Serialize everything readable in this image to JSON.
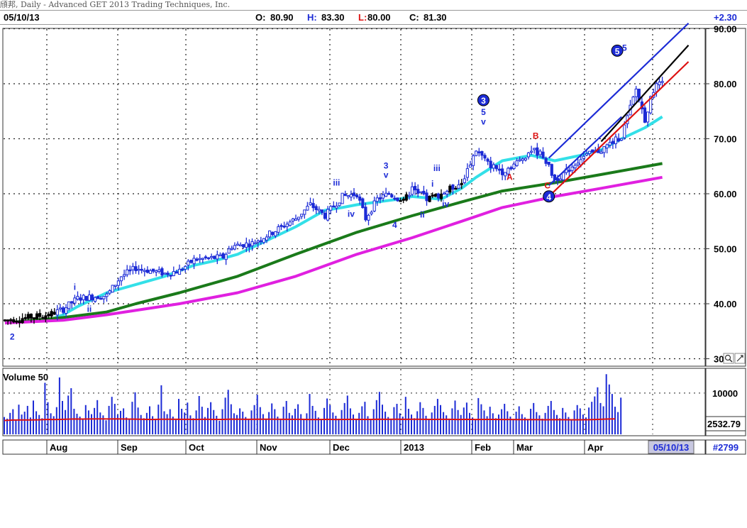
{
  "window": {
    "title": "頎邦, Daily - Advanced GET 2013 Trading Techniques, Inc."
  },
  "header": {
    "date": "05/10/13",
    "open_label": "O:",
    "open": "80.90",
    "high_label": "H:",
    "high": "83.30",
    "low_label": "L:",
    "low": "80.00",
    "close_label": "C:",
    "close": "81.30",
    "change": "+2.30"
  },
  "status": {
    "date_box": "05/10/13",
    "bar_count": "#2799"
  },
  "colors": {
    "up_bar": "#1c2bd6",
    "down_bar": "#000000",
    "cyan_ma": "#33e0e8",
    "green_ma": "#1a7a1a",
    "magenta_ma": "#e020e0",
    "volume": "#1c2bd6",
    "volume_ma": "#dd1111",
    "wave_label": "#1c2bd6",
    "abc_label": "#dd1111",
    "channel_blue": "#1c2bd6",
    "channel_black": "#000000",
    "channel_red": "#dd1111"
  },
  "chart_data": {
    "type": "candlestick",
    "y_axis": {
      "min": 30,
      "max": 90,
      "ticks": [
        "30",
        "40.00",
        "50.00",
        "60.00",
        "70.00",
        "80.00",
        "90.00"
      ],
      "grid": true
    },
    "x_axis": {
      "months": [
        "Aug",
        "Sep",
        "Oct",
        "Nov",
        "Dec",
        "2013",
        "Feb",
        "Mar",
        "Apr"
      ]
    },
    "price_path": [
      [
        0,
        37
      ],
      [
        8,
        37.5
      ],
      [
        15,
        38
      ],
      [
        20,
        39
      ],
      [
        25,
        41
      ],
      [
        35,
        41.5
      ],
      [
        40,
        45
      ],
      [
        45,
        46.5
      ],
      [
        55,
        45.5
      ],
      [
        60,
        46
      ],
      [
        65,
        48
      ],
      [
        75,
        48.5
      ],
      [
        78,
        50.5
      ],
      [
        85,
        51
      ],
      [
        92,
        53
      ],
      [
        100,
        55.5
      ],
      [
        105,
        58
      ],
      [
        110,
        56
      ],
      [
        116,
        59.5
      ],
      [
        121,
        60
      ],
      [
        124,
        55.5
      ],
      [
        128,
        59
      ],
      [
        132,
        60
      ],
      [
        137,
        58.5
      ],
      [
        140,
        61
      ],
      [
        145,
        59
      ],
      [
        150,
        60
      ],
      [
        157,
        62
      ],
      [
        162,
        68
      ],
      [
        166,
        65.5
      ],
      [
        171,
        64
      ],
      [
        177,
        66
      ],
      [
        181,
        68
      ],
      [
        185,
        67
      ],
      [
        189,
        62.5
      ],
      [
        193,
        64
      ],
      [
        198,
        66.5
      ],
      [
        205,
        68
      ],
      [
        212,
        70.5
      ],
      [
        217,
        79
      ],
      [
        220,
        73.5
      ],
      [
        223,
        79
      ],
      [
        226,
        81
      ]
    ],
    "moving_averages": {
      "cyan": [
        [
          0,
          36.5
        ],
        [
          8,
          36.8
        ],
        [
          15,
          37
        ],
        [
          20,
          38
        ],
        [
          25,
          39.5
        ],
        [
          35,
          42
        ],
        [
          45,
          43.5
        ],
        [
          55,
          45
        ],
        [
          65,
          47
        ],
        [
          72,
          47.8
        ],
        [
          80,
          49
        ],
        [
          90,
          51.5
        ],
        [
          100,
          54
        ],
        [
          110,
          57
        ],
        [
          116,
          57.5
        ],
        [
          121,
          58
        ],
        [
          128,
          58.5
        ],
        [
          135,
          59
        ],
        [
          140,
          59.5
        ],
        [
          150,
          59
        ],
        [
          157,
          61
        ],
        [
          162,
          63
        ],
        [
          171,
          66
        ],
        [
          181,
          67
        ],
        [
          189,
          66
        ],
        [
          198,
          67
        ],
        [
          205,
          68
        ],
        [
          212,
          70
        ],
        [
          220,
          72
        ],
        [
          226,
          74
        ]
      ],
      "green": [
        [
          0,
          36.5
        ],
        [
          20,
          37.5
        ],
        [
          35,
          38.5
        ],
        [
          45,
          40
        ],
        [
          60,
          42
        ],
        [
          80,
          45
        ],
        [
          100,
          49
        ],
        [
          121,
          53
        ],
        [
          140,
          56
        ],
        [
          157,
          58.5
        ],
        [
          171,
          60.5
        ],
        [
          189,
          62
        ],
        [
          205,
          63.5
        ],
        [
          226,
          65.5
        ]
      ],
      "magenta": [
        [
          0,
          36.5
        ],
        [
          20,
          37
        ],
        [
          35,
          38
        ],
        [
          60,
          40
        ],
        [
          80,
          42
        ],
        [
          100,
          45
        ],
        [
          121,
          49
        ],
        [
          140,
          52
        ],
        [
          157,
          55
        ],
        [
          171,
          57.5
        ],
        [
          189,
          59.5
        ],
        [
          205,
          61
        ],
        [
          226,
          63
        ]
      ]
    },
    "volume": {
      "axis_ticks": [
        "10000",
        "2532.79"
      ],
      "values": [
        4200,
        3800,
        5200,
        6100,
        3500,
        7200,
        4800,
        5500,
        6900,
        4100,
        8200,
        5600,
        4700,
        3900,
        12500,
        7800,
        5100,
        4400,
        6600,
        13800,
        8100,
        5900,
        9400,
        11200,
        6200,
        5000,
        4300,
        3700,
        7100,
        5800,
        4900,
        6400,
        8300,
        5300,
        4600,
        3400,
        6900,
        9100,
        7400,
        4800,
        5700,
        6300,
        4100,
        3600,
        7900,
        10200,
        6500,
        4700,
        3900,
        5200,
        6800,
        4400,
        3800,
        7200,
        11900,
        5600,
        4900,
        6100,
        4300,
        3500,
        8600,
        6200,
        5300,
        7700,
        4600,
        3900,
        5800,
        9300,
        6700,
        4200,
        6400,
        7800,
        5900,
        4500,
        3300,
        6100,
        8900,
        10800,
        7300,
        5100,
        4700,
        6300,
        5500,
        4200,
        3700,
        5800,
        7100,
        9600,
        6600,
        4900,
        3800,
        5400,
        7500,
        6100,
        4300,
        3600,
        6700,
        8100,
        5200,
        4600,
        6200,
        7300,
        4900,
        3800,
        5100,
        9800,
        6900,
        5700,
        4100,
        3500,
        6400,
        8700,
        7100,
        5300,
        4500,
        3800,
        5900,
        7600,
        9400,
        6300,
        4800,
        3700,
        5200,
        6800,
        7900,
        4400,
        3600,
        6100,
        8300,
        10300,
        7200,
        5500,
        4200,
        3800,
        6600,
        7400,
        5100,
        4300,
        9100,
        6200,
        4800,
        3900,
        5600,
        7800,
        6400,
        4500,
        3700,
        5300,
        6900,
        8600,
        7100,
        5400,
        4600,
        3800,
        6300,
        8200,
        5900,
        4700,
        6500,
        7700,
        5200,
        4100,
        3600,
        8800,
        7300,
        5800,
        4400,
        6700,
        5100,
        3900,
        4800,
        6100,
        7400,
        5600,
        4300,
        3700,
        5500,
        6800,
        4900,
        4100,
        3500,
        6200,
        7600,
        5400,
        4600,
        3800,
        5200,
        6900,
        8100,
        5900,
        4700,
        3900,
        6400,
        5300,
        4200,
        3600,
        5800,
        7100,
        6300,
        4800,
        4100,
        6500,
        7900,
        9200,
        11400,
        7600,
        6800,
        14600,
        12100,
        9800,
        6700,
        5400,
        8900
      ]
    },
    "wave_labels": [
      {
        "t": 2.5,
        "v": 33.5,
        "text": "2",
        "color": "blue"
      },
      {
        "t": 24,
        "v": 42.5,
        "text": "i",
        "color": "blue"
      },
      {
        "t": 29,
        "v": 38.5,
        "text": "ii",
        "color": "blue"
      },
      {
        "t": 114,
        "v": 61.5,
        "text": "iii",
        "color": "blue"
      },
      {
        "t": 119,
        "v": 55.8,
        "text": "iv",
        "color": "blue"
      },
      {
        "t": 131,
        "v": 64.6,
        "text": "3",
        "color": "blue"
      },
      {
        "t": 131,
        "v": 62.9,
        "text": "v",
        "color": "blue"
      },
      {
        "t": 134,
        "v": 53.8,
        "text": "4",
        "color": "blue"
      },
      {
        "t": 147,
        "v": 61.3,
        "text": "i",
        "color": "blue"
      },
      {
        "t": 148.5,
        "v": 64.1,
        "text": "iii",
        "color": "blue"
      },
      {
        "t": 143.5,
        "v": 55.7,
        "text": "ii",
        "color": "blue"
      },
      {
        "t": 151.5,
        "v": 57.6,
        "text": "iv",
        "color": "blue"
      },
      {
        "t": 164.5,
        "v": 76.5,
        "text": "3",
        "color": "blue",
        "circled": true
      },
      {
        "t": 164.5,
        "v": 74.3,
        "text": "5",
        "color": "blue"
      },
      {
        "t": 164.5,
        "v": 72.6,
        "text": "v",
        "color": "blue"
      },
      {
        "t": 173.5,
        "v": 62.5,
        "text": "A",
        "color": "red"
      },
      {
        "t": 182.5,
        "v": 70,
        "text": "B",
        "color": "red"
      },
      {
        "t": 186.5,
        "v": 61,
        "text": "C",
        "color": "red"
      },
      {
        "t": 187,
        "v": 59,
        "text": "4",
        "color": "blue",
        "circled": true
      },
      {
        "t": 210.5,
        "v": 85.5,
        "text": "5",
        "color": "blue",
        "circled": true
      },
      {
        "t": 213,
        "v": 86,
        "text": "5",
        "color": "blue"
      }
    ],
    "channel_lines": [
      {
        "color": "blue",
        "from": [
          187,
          66.5
        ],
        "to": [
          235,
          91
        ]
      },
      {
        "color": "blue",
        "from": [
          187,
          61.5
        ],
        "to": [
          212,
          74
        ]
      },
      {
        "color": "black",
        "from": [
          205,
          69.5
        ],
        "to": [
          235,
          87
        ]
      },
      {
        "color": "red",
        "from": [
          187,
          59.5
        ],
        "to": [
          235,
          84
        ]
      }
    ]
  },
  "volume_panel": {
    "label": "Volume 50"
  },
  "chart_icons": {
    "zoom": "magnifier-icon",
    "corner": "arrows-icon"
  }
}
